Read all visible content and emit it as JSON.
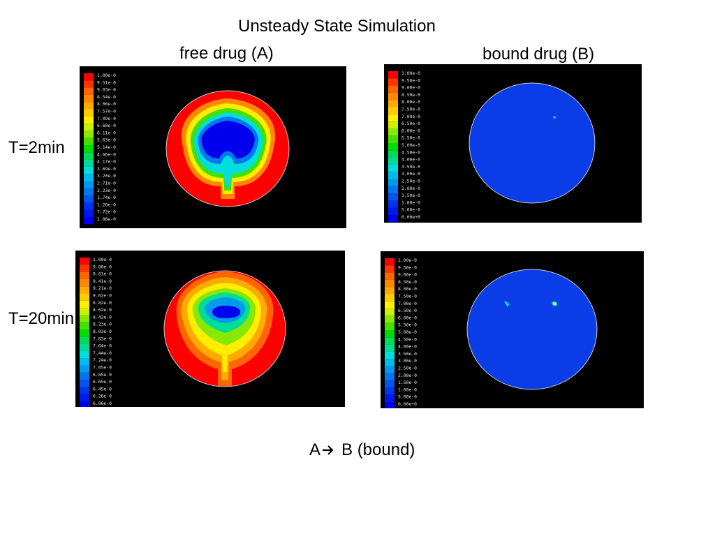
{
  "title": "Unsteady State Simulation",
  "columns": [
    "free drug (A)",
    "bound drug (B)"
  ],
  "rows": [
    "T=2min",
    "T=20min"
  ],
  "caption": {
    "left": "A",
    "arrow": "arrow-right-icon",
    "right": "B (bound)"
  },
  "legends": {
    "A_t2": [
      "1.00e-0",
      "9.51e-0",
      "9.03e-0",
      "8.54e-0",
      "8.06e-0",
      "7.57e-0",
      "7.09e-0",
      "6.60e-0",
      "6.11e-0",
      "5.63e-0",
      "5.14e-0",
      "4.66e-0",
      "4.17e-0",
      "3.69e-0",
      "3.20e-0",
      "2.71e-0",
      "2.23e-0",
      "1.74e-0",
      "1.26e-0",
      "7.72e-0",
      "2.86e-0"
    ],
    "B_t2": [
      "1.00e-0",
      "9.50e-0",
      "9.00e-0",
      "8.50e-0",
      "8.00e-0",
      "7.50e-0",
      "7.00e-0",
      "6.50e-0",
      "6.00e-0",
      "5.50e-0",
      "5.00e-0",
      "4.50e-0",
      "4.00e-0",
      "3.50e-0",
      "3.00e-0",
      "2.50e-0",
      "2.00e-0",
      "1.50e-0",
      "1.00e-0",
      "5.00e-0",
      "0.00e+0"
    ],
    "A_t20": [
      "1.00e-0",
      "9.80e-0",
      "9.61e-0",
      "9.41e-0",
      "9.21e-0",
      "9.02e-0",
      "8.82e-0",
      "8.62e-0",
      "8.42e-0",
      "8.23e-0",
      "8.03e-0",
      "7.83e-0",
      "7.64e-0",
      "7.44e-0",
      "7.24e-0",
      "7.05e-0",
      "6.85e-0",
      "6.65e-0",
      "6.45e-0",
      "6.26e-0",
      "6.06e-0"
    ],
    "B_t20": [
      "1.00e-0",
      "9.50e-0",
      "9.00e-0",
      "8.50e-0",
      "8.00e-0",
      "7.50e-0",
      "7.00e-0",
      "6.50e-0",
      "6.00e-0",
      "5.50e-0",
      "5.00e-0",
      "4.50e-0",
      "4.00e-0",
      "3.50e-0",
      "3.00e-0",
      "2.50e-0",
      "2.00e-0",
      "1.50e-0",
      "1.00e-0",
      "5.00e-0",
      "0.00e+0"
    ]
  },
  "colors": {
    "scale": [
      "#ff0000",
      "#ff3300",
      "#ff6600",
      "#ff8800",
      "#ffaa00",
      "#ffcc00",
      "#ffee00",
      "#ccf000",
      "#88e800",
      "#44e000",
      "#00dd00",
      "#00dd55",
      "#00dd99",
      "#00dddd",
      "#00bbee",
      "#0099ee",
      "#0077ee",
      "#0055ee",
      "#0033ee",
      "#0018ee",
      "#0000ee"
    ],
    "contour_bg": "#000000",
    "disk_blue": "#0a3ce8"
  }
}
